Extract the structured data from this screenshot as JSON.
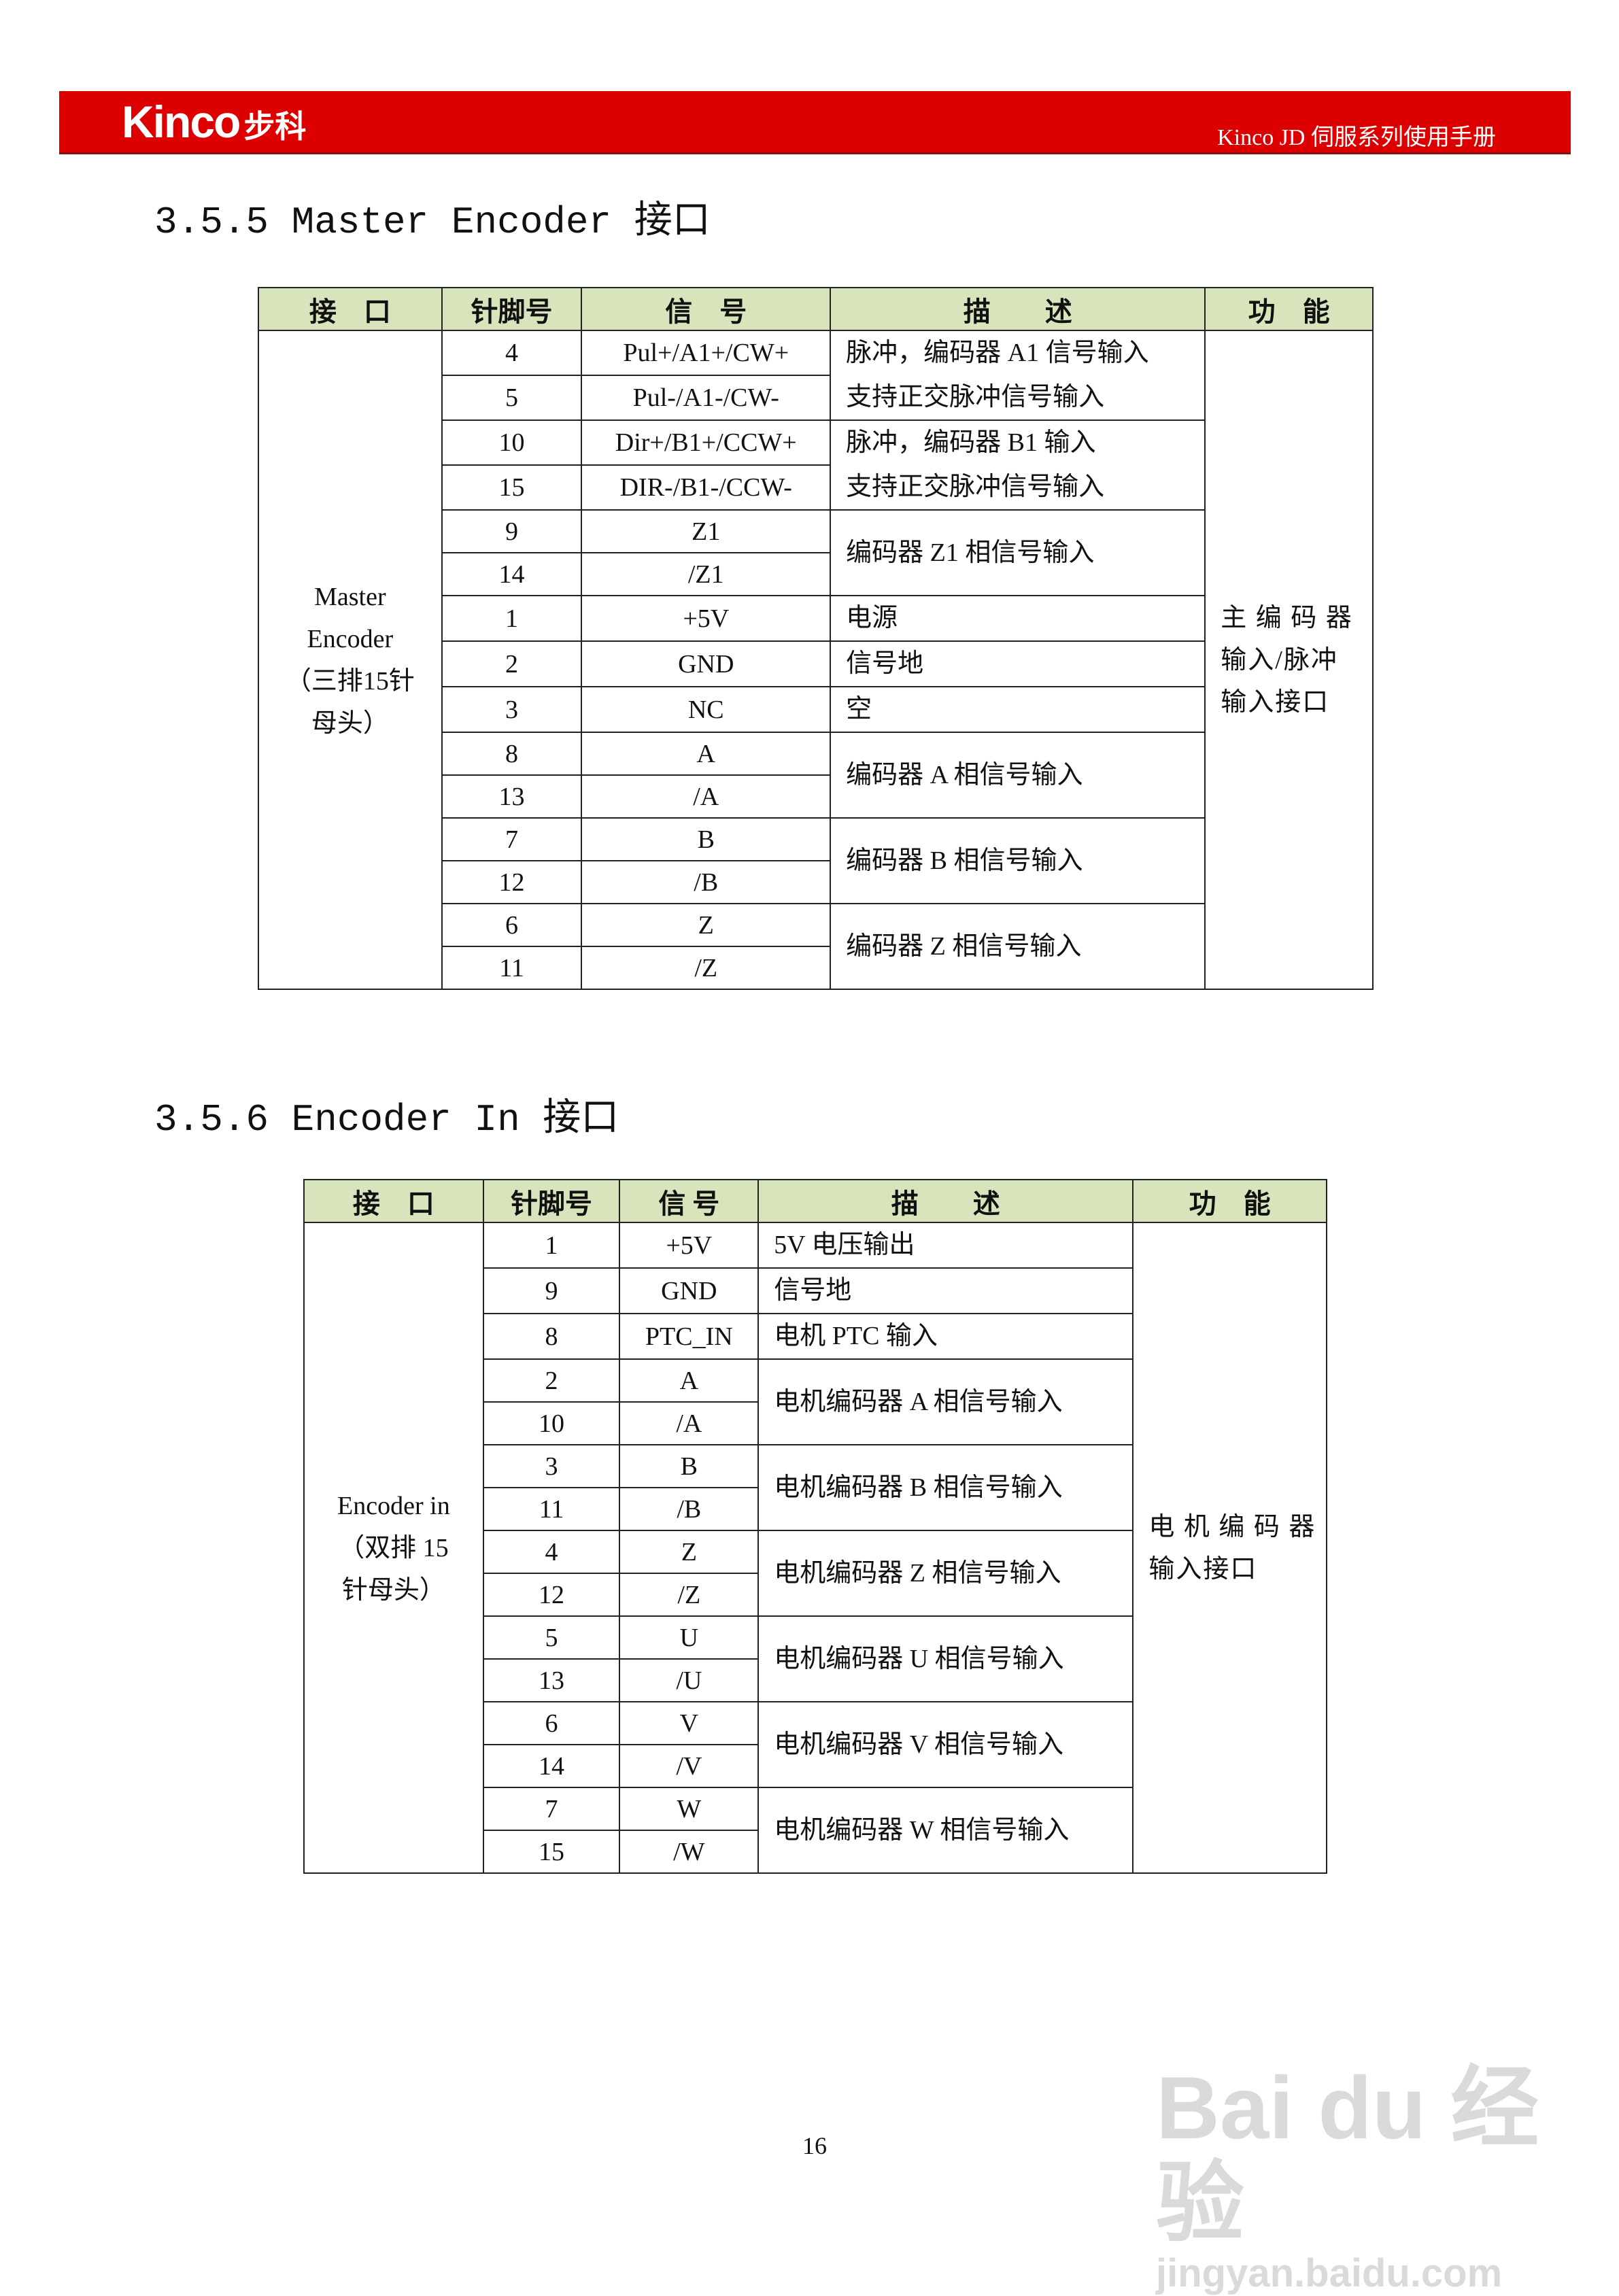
{
  "header": {
    "logo": "Kinco",
    "logo_cn": "步科",
    "manual_title": "Kinco JD 伺服系列使用手册",
    "brand_color": "#dc0000"
  },
  "section1": {
    "title": "3.5.5  Master Encoder 接口",
    "columns": [
      "接　口",
      "针脚号",
      "信　号",
      "描　　述",
      "功　能"
    ],
    "interface": "Master\nEncoder\n（三排15针\n母头）",
    "function": "主 编 码 器\n输入/脉冲\n输入接口",
    "groups": [
      {
        "rows": [
          [
            "4",
            "Pul+/A1+/CW+"
          ],
          [
            "5",
            "Pul-/A1-/CW-"
          ]
        ],
        "desc": "脉冲，编码器 A1 信号输入\n支持正交脉冲信号输入"
      },
      {
        "rows": [
          [
            "10",
            "Dir+/B1+/CCW+"
          ],
          [
            "15",
            "DIR-/B1-/CCW-"
          ]
        ],
        "desc": "脉冲，编码器 B1 输入\n支持正交脉冲信号输入"
      },
      {
        "rows": [
          [
            "9",
            "Z1"
          ],
          [
            "14",
            "/Z1"
          ]
        ],
        "desc": "编码器 Z1 相信号输入"
      },
      {
        "rows": [
          [
            "1",
            "+5V"
          ]
        ],
        "desc": "电源"
      },
      {
        "rows": [
          [
            "2",
            "GND"
          ]
        ],
        "desc": "信号地"
      },
      {
        "rows": [
          [
            "3",
            "NC"
          ]
        ],
        "desc": "空"
      },
      {
        "rows": [
          [
            "8",
            "A"
          ],
          [
            "13",
            "/A"
          ]
        ],
        "desc": "编码器 A 相信号输入"
      },
      {
        "rows": [
          [
            "7",
            "B"
          ],
          [
            "12",
            "/B"
          ]
        ],
        "desc": "编码器 B 相信号输入"
      },
      {
        "rows": [
          [
            "6",
            "Z"
          ],
          [
            "11",
            "/Z"
          ]
        ],
        "desc": "编码器 Z 相信号输入"
      }
    ]
  },
  "section2": {
    "title": "3.5.6  Encoder In 接口",
    "columns": [
      "接　口",
      "针脚号",
      "信 号",
      "描　　述",
      "功　能"
    ],
    "interface": "Encoder in\n（双排 15\n针母头）",
    "function": "电 机 编 码 器\n输入接口",
    "groups": [
      {
        "rows": [
          [
            "1",
            "+5V"
          ]
        ],
        "desc": "5V 电压输出"
      },
      {
        "rows": [
          [
            "9",
            "GND"
          ]
        ],
        "desc": "信号地"
      },
      {
        "rows": [
          [
            "8",
            "PTC_IN"
          ]
        ],
        "desc": "电机 PTC 输入"
      },
      {
        "rows": [
          [
            "2",
            "A"
          ],
          [
            "10",
            "/A"
          ]
        ],
        "desc": "电机编码器 A 相信号输入"
      },
      {
        "rows": [
          [
            "3",
            "B"
          ],
          [
            "11",
            "/B"
          ]
        ],
        "desc": "电机编码器 B 相信号输入"
      },
      {
        "rows": [
          [
            "4",
            "Z"
          ],
          [
            "12",
            "/Z"
          ]
        ],
        "desc": "电机编码器 Z 相信号输入"
      },
      {
        "rows": [
          [
            "5",
            "U"
          ],
          [
            "13",
            "/U"
          ]
        ],
        "desc": "电机编码器 U 相信号输入"
      },
      {
        "rows": [
          [
            "6",
            "V"
          ],
          [
            "14",
            "/V"
          ]
        ],
        "desc": "电机编码器 V 相信号输入"
      },
      {
        "rows": [
          [
            "7",
            "W"
          ],
          [
            "15",
            "/W"
          ]
        ],
        "desc": "电机编码器 W 相信号输入"
      }
    ]
  },
  "footer": {
    "page_number": "16"
  },
  "watermark": {
    "brand": "Bai du 经验",
    "url": "jingyan.baidu.com"
  }
}
